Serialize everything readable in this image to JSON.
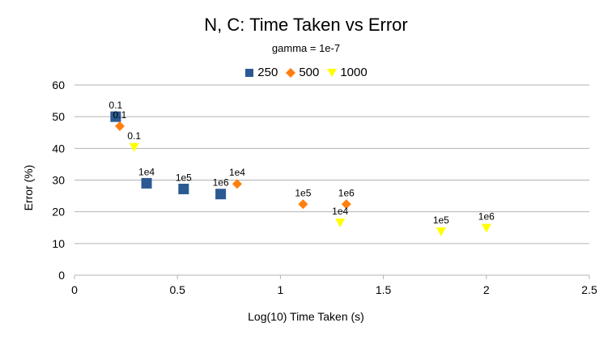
{
  "chart_data": {
    "type": "scatter",
    "title": "N, C: Time Taken vs Error",
    "subtitle": "gamma = 1e-7",
    "xlabel": "Log(10) Time Taken (s)",
    "ylabel": "Error (%)",
    "xlim": [
      0,
      2.5
    ],
    "ylim": [
      0,
      60
    ],
    "xticks": [
      "0",
      "0.5",
      "1",
      "1.5",
      "2",
      "2.5"
    ],
    "yticks": [
      "0",
      "10",
      "20",
      "30",
      "40",
      "50",
      "60"
    ],
    "grid": "horizontal",
    "legend_position": "top",
    "series": [
      {
        "name": "250",
        "marker": "square",
        "color": "#2b5a92",
        "points": [
          {
            "x": 0.2,
            "y": 50.0,
            "label": "0.1"
          },
          {
            "x": 0.35,
            "y": 29.0,
            "label": "1e4"
          },
          {
            "x": 0.53,
            "y": 27.2,
            "label": "1e5"
          },
          {
            "x": 0.71,
            "y": 25.6,
            "label": "1e6"
          }
        ]
      },
      {
        "name": "500",
        "marker": "diamond",
        "color": "#ff7f0e",
        "points": [
          {
            "x": 0.22,
            "y": 47.0,
            "label": "0.1"
          },
          {
            "x": 0.79,
            "y": 28.8,
            "label": "1e4"
          },
          {
            "x": 1.11,
            "y": 22.4,
            "label": "1e5"
          },
          {
            "x": 1.32,
            "y": 22.4,
            "label": "1e6"
          }
        ]
      },
      {
        "name": "1000",
        "marker": "triangle-down",
        "color": "#ffff00",
        "points": [
          {
            "x": 0.29,
            "y": 40.4,
            "label": "0.1"
          },
          {
            "x": 1.29,
            "y": 16.6,
            "label": "1e4"
          },
          {
            "x": 1.78,
            "y": 13.8,
            "label": "1e5"
          },
          {
            "x": 2.0,
            "y": 14.9,
            "label": "1e6"
          }
        ]
      }
    ]
  }
}
